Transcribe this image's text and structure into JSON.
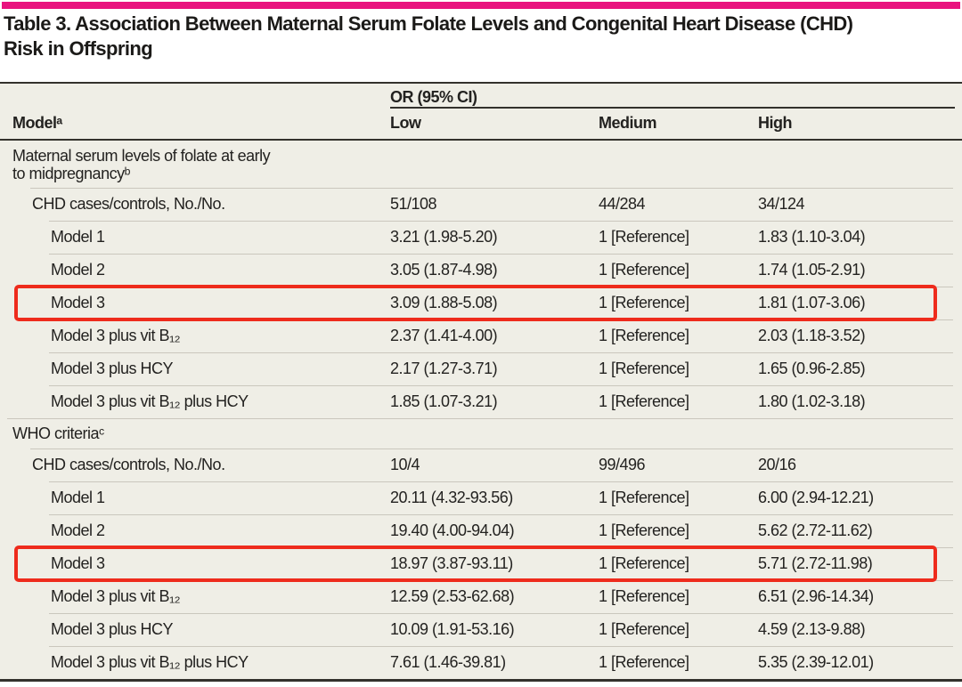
{
  "title": {
    "line1": "Table 3. Association Between Maternal Serum Folate Levels and Congenital Heart Disease (CHD)",
    "line2": "Risk in Offspring"
  },
  "table": {
    "header": {
      "spanner": "OR (95% CI)",
      "model": "Modelᵃ",
      "columns": [
        "Low",
        "Medium",
        "High"
      ]
    },
    "rows": [
      {
        "type": "section",
        "indent": 0,
        "label": "Maternal serum levels of folate at early",
        "label2": "to midpregnancyᵇ",
        "sep": false
      },
      {
        "type": "data",
        "indent": 1,
        "label": "CHD cases/controls, No./No.",
        "low": "51/108",
        "medium": "44/284",
        "high": "34/124"
      },
      {
        "type": "data",
        "indent": 2,
        "label": "Model 1",
        "low": "3.21 (1.98-5.20)",
        "medium": "1 [Reference]",
        "high": "1.83 (1.10-3.04)"
      },
      {
        "type": "data",
        "indent": 2,
        "label": "Model 2",
        "low": "3.05 (1.87-4.98)",
        "medium": "1 [Reference]",
        "high": "1.74 (1.05-2.91)"
      },
      {
        "type": "data",
        "indent": 2,
        "label": "Model 3",
        "low": "3.09 (1.88-5.08)",
        "medium": "1 [Reference]",
        "high": "1.81 (1.07-3.06)",
        "highlighted": true
      },
      {
        "type": "data",
        "indent": 2,
        "label": "Model 3 plus vit B₁₂",
        "low": "2.37 (1.41-4.00)",
        "medium": "1 [Reference]",
        "high": "2.03 (1.18-3.52)"
      },
      {
        "type": "data",
        "indent": 2,
        "label": "Model 3 plus HCY",
        "low": "2.17 (1.27-3.71)",
        "medium": "1 [Reference]",
        "high": "1.65 (0.96-2.85)"
      },
      {
        "type": "data",
        "indent": 2,
        "label": "Model 3 plus vit B₁₂ plus HCY",
        "low": "1.85 (1.07-3.21)",
        "medium": "1 [Reference]",
        "high": "1.80 (1.02-3.18)"
      },
      {
        "type": "section",
        "indent": 0,
        "label": "WHO criteriaᶜ"
      },
      {
        "type": "data",
        "indent": 1,
        "label": "CHD cases/controls, No./No.",
        "low": "10/4",
        "medium": "99/496",
        "high": "20/16"
      },
      {
        "type": "data",
        "indent": 2,
        "label": "Model 1",
        "low": "20.11 (4.32-93.56)",
        "medium": "1 [Reference]",
        "high": "6.00 (2.94-12.21)"
      },
      {
        "type": "data",
        "indent": 2,
        "label": "Model 2",
        "low": "19.40 (4.00-94.04)",
        "medium": "1 [Reference]",
        "high": "5.62 (2.72-11.62)"
      },
      {
        "type": "data",
        "indent": 2,
        "label": "Model 3",
        "low": "18.97 (3.87-93.11)",
        "medium": "1 [Reference]",
        "high": "5.71 (2.72-11.98)",
        "highlighted": true
      },
      {
        "type": "data",
        "indent": 2,
        "label": "Model 3 plus vit B₁₂",
        "low": "12.59 (2.53-62.68)",
        "medium": "1 [Reference]",
        "high": "6.51 (2.96-14.34)"
      },
      {
        "type": "data",
        "indent": 2,
        "label": "Model 3 plus HCY",
        "low": "10.09 (1.91-53.16)",
        "medium": "1 [Reference]",
        "high": "4.59 (2.13-9.88)"
      },
      {
        "type": "data",
        "indent": 2,
        "label": "Model 3 plus vit B₁₂ plus HCY",
        "low": "7.61 (1.46-39.81)",
        "medium": "1 [Reference]",
        "high": "5.35 (2.39-12.01)"
      }
    ]
  },
  "colors": {
    "accent_pink": "#e9137f",
    "highlight_red": "#ee2b1c",
    "table_background": "#efeee6",
    "rule_dark": "#33312c",
    "separator_gray": "#cac7bd",
    "text": "#232220"
  }
}
